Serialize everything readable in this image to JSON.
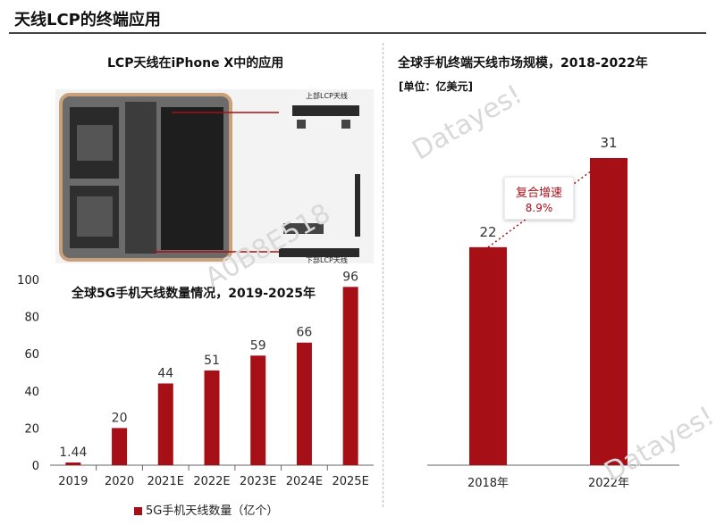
{
  "header": {
    "title": "天线LCP的终端应用"
  },
  "photo_panel": {
    "title": "LCP天线在iPhone X中的应用",
    "upper_label": "上部LCP天线",
    "lower_label": "下部LCP天线"
  },
  "watermarks": {
    "left": "A0B8E518",
    "right_top": "Datayes!",
    "right_bottom": "Datayes!"
  },
  "colors": {
    "bar": "#a50f15"
  },
  "chart_data": [
    {
      "type": "bar",
      "title": "全球5G手机天线数量情况，2019-2025年",
      "categories": [
        "2019",
        "2020",
        "2021E",
        "2022E",
        "2023E",
        "2024E",
        "2025E"
      ],
      "series": [
        {
          "name": "5G手机天线数量（亿个）",
          "values": [
            1.44,
            20,
            44,
            51,
            59,
            66,
            96
          ]
        }
      ],
      "data_labels": [
        "1.44",
        "20",
        "44",
        "51",
        "59",
        "66",
        "96"
      ],
      "y_ticks": [
        "0",
        "20",
        "40",
        "60",
        "80",
        "100"
      ],
      "ylim": [
        0,
        100
      ],
      "legend": "bottom"
    },
    {
      "type": "bar",
      "title": "全球手机终端天线市场规模，2018-2022年",
      "unit": "[单位：亿美元]",
      "categories": [
        "2018年",
        "2022年"
      ],
      "values": [
        22,
        31
      ],
      "data_labels": [
        "22",
        "31"
      ],
      "annotation": {
        "line1": "复合增速",
        "line2": "8.9%"
      }
    }
  ]
}
